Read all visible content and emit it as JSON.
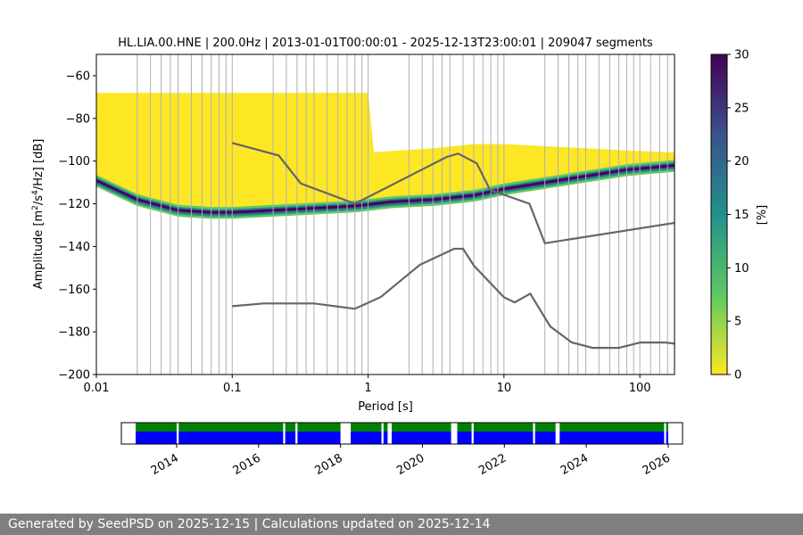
{
  "chart_data": [
    {
      "type": "heatmap",
      "title": "HL.LIA.00.HNE | 200.0Hz | 2013-01-01T00:00:01 - 2025-12-13T23:00:01 | 209047 segments",
      "xlabel": "Period [s]",
      "ylabel_parts": [
        "Amplitude [m",
        "2",
        "/s",
        "4",
        "/Hz] [dB]"
      ],
      "x_scale": "log",
      "xlim": [
        0.01,
        180
      ],
      "ylim": [
        -200,
        -50
      ],
      "x_ticks": [
        0.01,
        0.1,
        1,
        10,
        100
      ],
      "x_tick_labels": [
        "0.01",
        "0.1",
        "1",
        "10",
        "100"
      ],
      "y_ticks": [
        -60,
        -80,
        -100,
        -120,
        -140,
        -160,
        -180,
        -200
      ],
      "y_tick_labels": [
        "−60",
        "−80",
        "−100",
        "−120",
        "−140",
        "−160",
        "−180",
        "−200"
      ],
      "grid": "vertical lines at computed periods",
      "colormap": "viridis_r",
      "colorbar": {
        "label": "[%]",
        "range": [
          0,
          30
        ],
        "ticks": [
          0,
          5,
          10,
          15,
          20,
          25,
          30
        ],
        "tick_labels": [
          "0",
          "5",
          "10",
          "15",
          "20",
          "25",
          "30"
        ],
        "colors": [
          "#fde725",
          "#5ec962",
          "#21918c",
          "#3b528b",
          "#440154"
        ]
      },
      "mode_curve": {
        "period": [
          0.005,
          0.01,
          0.02,
          0.04,
          0.07,
          0.1,
          0.2,
          0.4,
          0.8,
          1.5,
          3,
          6,
          10,
          20,
          40,
          80,
          180
        ],
        "db": [
          -104,
          -109,
          -118,
          -123,
          -124,
          -124,
          -123,
          -122,
          -121,
          -119,
          -118,
          -116,
          -113,
          -110,
          -107,
          -104,
          -102
        ]
      },
      "upper_edge_db": -68,
      "upper_edge_long_period": {
        "period": [
          1,
          3,
          6,
          10,
          20,
          40,
          80,
          180
        ],
        "db": [
          -96,
          -94,
          -92,
          -92,
          -93,
          -94,
          -95,
          -96
        ]
      },
      "noise_models": [
        {
          "name": "high noise model",
          "period": [
            0.1,
            0.22,
            0.32,
            0.8,
            3.8,
            4.6,
            6.3,
            7.9,
            15.4,
            20,
            354.8
          ],
          "db": [
            -91.5,
            -97.4,
            -110.5,
            -120,
            -98,
            -96.5,
            -101,
            -113.5,
            -120,
            -138.5,
            -126
          ]
        },
        {
          "name": "low noise model",
          "period": [
            0.1,
            0.17,
            0.4,
            0.8,
            1.24,
            2.4,
            4.3,
            5,
            6,
            10,
            12,
            15.6,
            21.9,
            31.6,
            45,
            70,
            101,
            154,
            328
          ],
          "db": [
            -168,
            -166.7,
            -166.7,
            -169.2,
            -163.7,
            -148.6,
            -141.1,
            -141.1,
            -149,
            -163.8,
            -166.2,
            -162.1,
            -177.5,
            -185,
            -187.5,
            -187.5,
            -185,
            -185,
            -187.5
          ]
        }
      ],
      "noise_model_color": "#666666",
      "grid_periods": [
        0.01,
        0.02,
        0.025,
        0.03,
        0.035,
        0.04,
        0.05,
        0.06,
        0.07,
        0.08,
        0.09,
        0.1,
        0.2,
        0.25,
        0.3,
        0.35,
        0.4,
        0.5,
        0.6,
        0.7,
        0.8,
        0.9,
        1,
        2,
        2.5,
        3,
        3.5,
        4,
        5,
        6,
        7,
        8,
        9,
        10,
        20,
        25,
        30,
        35,
        40,
        50,
        60,
        70,
        80,
        90,
        100,
        120,
        140,
        160
      ]
    },
    {
      "type": "timeline",
      "xlim": [
        2012.65,
        2026.35
      ],
      "ticks": [
        2014,
        2016,
        2018,
        2020,
        2022,
        2024,
        2026
      ],
      "tick_labels": [
        "2014",
        "2016",
        "2018",
        "2020",
        "2022",
        "2024",
        "2026"
      ],
      "colors": {
        "used": "#0000ff",
        "available": "#008000"
      },
      "coverage": [
        [
          2013.0,
          2014.0
        ],
        [
          2014.05,
          2016.6
        ],
        [
          2016.65,
          2016.9
        ],
        [
          2016.95,
          2018.0
        ],
        [
          2018.25,
          2019.0
        ],
        [
          2019.05,
          2019.15
        ],
        [
          2019.25,
          2020.7
        ],
        [
          2020.85,
          2021.2
        ],
        [
          2021.25,
          2022.7
        ],
        [
          2022.75,
          2023.25
        ],
        [
          2023.35,
          2025.9
        ],
        [
          2025.95,
          2026.0
        ]
      ]
    }
  ],
  "footer": {
    "text": "Generated by SeedPSD on 2025-12-15 | Calculations updated on 2025-12-14"
  }
}
